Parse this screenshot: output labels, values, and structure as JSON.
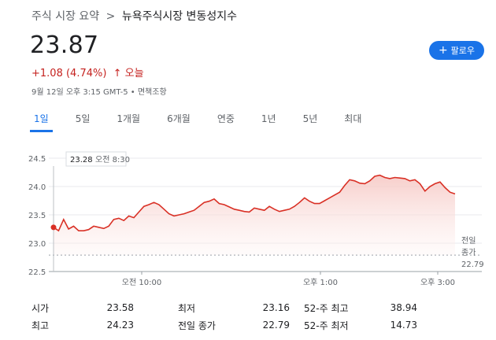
{
  "breadcrumb": {
    "parent": "주식 시장 요약",
    "separator": ">",
    "current": "뉴욕주식시장 변동성지수"
  },
  "quote": {
    "price": "23.87",
    "change": "+1.08 (4.74%)",
    "arrow": "↑",
    "period": "오늘",
    "timestamp": "9월 12일 오후 3:15 GMT-5 • 면책조항"
  },
  "follow_button": {
    "icon": "plus-icon",
    "label": "팔로우"
  },
  "tabs": [
    {
      "label": "1일",
      "active": true
    },
    {
      "label": "5일"
    },
    {
      "label": "1개월"
    },
    {
      "label": "6개월"
    },
    {
      "label": "연중"
    },
    {
      "label": "1년"
    },
    {
      "label": "5년"
    },
    {
      "label": "최대"
    }
  ],
  "colors": {
    "accent": "#1a73e8",
    "negative_line": "#d93025",
    "fill": "#fce8e6"
  },
  "chart_data": {
    "type": "line",
    "ylim": [
      22.5,
      24.5
    ],
    "yticks": [
      22.5,
      23.0,
      23.5,
      24.0,
      24.5
    ],
    "ytick_labels": [
      "22.5",
      "23.0",
      "23.5",
      "24.0",
      "24.5"
    ],
    "xtick_labels": [
      "오전 10:00",
      "오후 1:00",
      "오후 3:00"
    ],
    "previous_close": {
      "label_line1": "전일",
      "label_line2": "종가",
      "value": 22.79,
      "value_label": "22.79"
    },
    "tooltip": {
      "value": "23.28",
      "time": "오전 8:30"
    },
    "series": [
      {
        "values": [
          23.28,
          23.22,
          23.42,
          23.25,
          23.3,
          23.22,
          23.22,
          23.24,
          23.3,
          23.28,
          23.26,
          23.3,
          23.42,
          23.44,
          23.4,
          23.48,
          23.45,
          23.55,
          23.65,
          23.68,
          23.72,
          23.68,
          23.6,
          23.52,
          23.48,
          23.5,
          23.52,
          23.55,
          23.58,
          23.65,
          23.72,
          23.74,
          23.78,
          23.7,
          23.68,
          23.64,
          23.6,
          23.58,
          23.56,
          23.55,
          23.62,
          23.6,
          23.58,
          23.65,
          23.6,
          23.56,
          23.58,
          23.6,
          23.65,
          23.72,
          23.8,
          23.74,
          23.7,
          23.7,
          23.75,
          23.8,
          23.85,
          23.9,
          24.02,
          24.12,
          24.1,
          24.06,
          24.05,
          24.1,
          24.18,
          24.2,
          24.16,
          24.14,
          24.16,
          24.15,
          24.14,
          24.1,
          24.12,
          24.05,
          23.92,
          24.0,
          24.05,
          24.08,
          23.98,
          23.9,
          23.87
        ]
      }
    ]
  },
  "stats": [
    [
      {
        "label": "시가",
        "value": "23.58"
      },
      {
        "label": "최저",
        "value": "23.16"
      },
      {
        "label": "52-주 최고",
        "value": "38.94"
      }
    ],
    [
      {
        "label": "최고",
        "value": "24.23"
      },
      {
        "label": "전일 종가",
        "value": "22.79"
      },
      {
        "label": "52-주 최저",
        "value": "14.73"
      }
    ]
  ]
}
